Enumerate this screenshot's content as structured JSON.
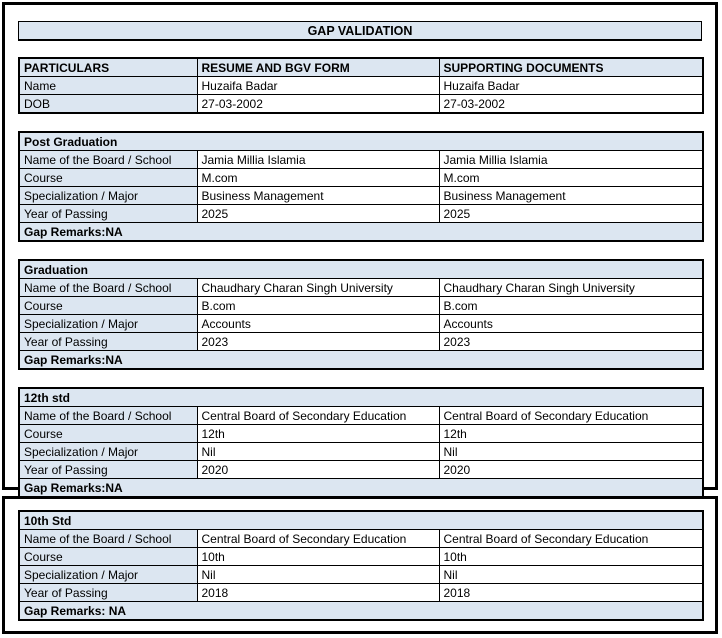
{
  "title": "GAP VALIDATION",
  "colors": {
    "accent_fill": "#DCE6F1",
    "border": "#000000",
    "page_background": "#FFFFFF"
  },
  "main_table": {
    "headers": [
      "PARTICULARS",
      "RESUME AND BGV FORM",
      "SUPPORTING DOCUMENTS"
    ],
    "rows": [
      {
        "label": "Name",
        "resume": "Huzaifa Badar",
        "supporting": "Huzaifa Badar"
      },
      {
        "label": "DOB",
        "resume": "27-03-2002",
        "supporting": "27-03-2002"
      }
    ]
  },
  "sections": [
    {
      "title": "Post Graduation",
      "rows": [
        {
          "label": "Name of the Board / School",
          "resume": "Jamia Millia Islamia",
          "supporting": "Jamia Millia Islamia"
        },
        {
          "label": "Course",
          "resume": "M.com",
          "supporting": "M.com"
        },
        {
          "label": "Specialization / Major",
          "resume": "Business Management",
          "supporting": "Business Management"
        },
        {
          "label": "Year of Passing",
          "resume": "2025",
          "supporting": "2025"
        }
      ],
      "gap_remarks": "Gap Remarks:NA"
    },
    {
      "title": "Graduation",
      "rows": [
        {
          "label": "Name of the Board / School",
          "resume": "Chaudhary Charan Singh University",
          "supporting": "Chaudhary Charan Singh University"
        },
        {
          "label": "Course",
          "resume": "B.com",
          "supporting": "B.com"
        },
        {
          "label": "Specialization / Major",
          "resume": "Accounts",
          "supporting": "Accounts"
        },
        {
          "label": "Year of Passing",
          "resume": "2023",
          "supporting": "2023"
        }
      ],
      "gap_remarks": "Gap Remarks:NA"
    },
    {
      "title": "12th std",
      "rows": [
        {
          "label": "Name of the Board / School",
          "resume": "Central Board of Secondary Education",
          "supporting": "Central Board of Secondary Education"
        },
        {
          "label": "Course",
          "resume": "12th",
          "supporting": "12th"
        },
        {
          "label": "Specialization / Major",
          "resume": "Nil",
          "supporting": "Nil"
        },
        {
          "label": "Year of Passing",
          "resume": "2020",
          "supporting": "2020"
        }
      ],
      "gap_remarks": "Gap Remarks:NA"
    },
    {
      "title": "10th Std",
      "rows": [
        {
          "label": "Name of the Board / School",
          "resume": "Central Board of Secondary Education",
          "supporting": "Central Board of Secondary Education"
        },
        {
          "label": "Course",
          "resume": "10th",
          "supporting": "10th"
        },
        {
          "label": "Specialization / Major",
          "resume": "Nil",
          "supporting": "Nil"
        },
        {
          "label": "Year of Passing",
          "resume": "2018",
          "supporting": "2018"
        }
      ],
      "gap_remarks": "Gap Remarks: NA"
    }
  ]
}
